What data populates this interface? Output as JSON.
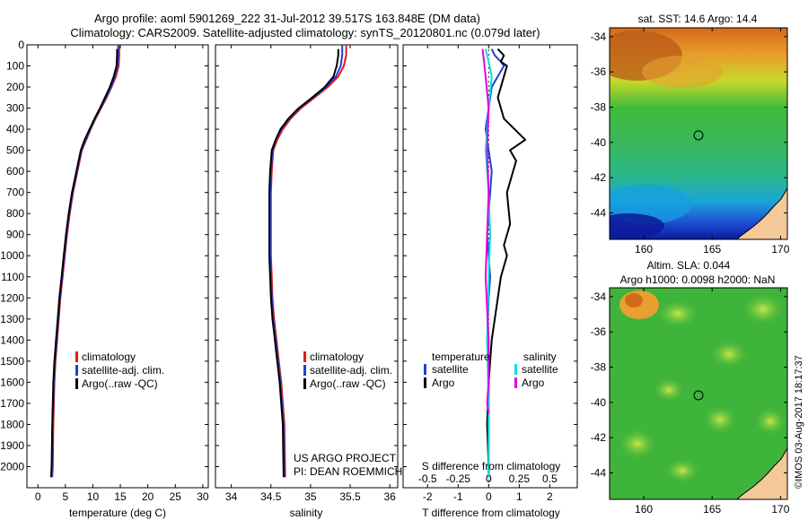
{
  "header": {
    "line1": "Argo profile: aoml 5901269_222 31-Jul-2012 39.517S 163.848E (DM data)",
    "line2": "Climatology: CARS2009. Satellite-adjusted climatology: synTS_20120801.nc (0.079d later)"
  },
  "colors": {
    "climatology": "#e41a1c",
    "satellite": "#1f3fd6",
    "argo": "#000000",
    "sal_satellite": "#00e0e0",
    "sal_argo": "#e000e0",
    "land": "#f5c89a"
  },
  "project": {
    "line1": "US ARGO PROJECT",
    "line2": "PI: DEAN ROEMMICH"
  },
  "credit": "©IMOS 03-Aug-2017 18:17:37",
  "chart_data": [
    {
      "id": "temperature",
      "type": "line",
      "xlabel": "temperature (deg C)",
      "ylabel": "",
      "xlim": [
        -2,
        31
      ],
      "ylim": [
        2100,
        0
      ],
      "xticks": [
        0,
        5,
        10,
        15,
        20,
        25,
        30
      ],
      "yticks": [
        0,
        100,
        200,
        300,
        400,
        500,
        600,
        700,
        800,
        900,
        1000,
        1100,
        1200,
        1300,
        1400,
        1500,
        1600,
        1700,
        1800,
        1900,
        2000
      ],
      "legend": [
        "climatology",
        "satellite-adj. clim.",
        "Argo(..raw -QC)"
      ],
      "series": [
        {
          "name": "climatology",
          "color": "#e41a1c",
          "x": [
            14.8,
            14.8,
            14.7,
            14.2,
            13.4,
            12.5,
            11.5,
            10.5,
            9.6,
            8.8,
            8.0,
            7.2,
            6.4,
            5.8,
            5.3,
            4.9,
            4.5,
            4.1,
            3.8,
            3.5,
            3.2,
            3.0,
            2.8,
            2.7,
            2.6
          ],
          "y": [
            0,
            50,
            100,
            150,
            200,
            250,
            300,
            350,
            400,
            450,
            500,
            600,
            700,
            800,
            900,
            1000,
            1100,
            1200,
            1300,
            1400,
            1500,
            1600,
            1800,
            2000,
            2050
          ]
        },
        {
          "name": "satellite-adj. clim.",
          "color": "#1f3fd6",
          "x": [
            14.6,
            14.6,
            14.5,
            14.0,
            13.3,
            12.4,
            11.4,
            10.4,
            9.5,
            8.7,
            7.9,
            7.1,
            6.3,
            5.7,
            5.2,
            4.8,
            4.4,
            4.0,
            3.7,
            3.4,
            3.1,
            2.9,
            2.7,
            2.6,
            2.5
          ],
          "y": [
            0,
            50,
            100,
            150,
            200,
            250,
            300,
            350,
            400,
            450,
            500,
            600,
            700,
            800,
            900,
            1000,
            1100,
            1200,
            1300,
            1400,
            1500,
            1600,
            1800,
            2000,
            2050
          ]
        },
        {
          "name": "Argo(..raw -QC)",
          "color": "#000000",
          "x": [
            14.4,
            14.4,
            14.3,
            13.8,
            13.1,
            12.2,
            11.3,
            10.3,
            9.4,
            8.5,
            7.8,
            7.0,
            6.2,
            5.6,
            5.1,
            4.7,
            4.3,
            3.9,
            3.6,
            3.3,
            3.0,
            2.8,
            2.6,
            2.5,
            2.4
          ],
          "y": [
            20,
            50,
            100,
            150,
            200,
            250,
            300,
            350,
            400,
            450,
            500,
            600,
            700,
            800,
            900,
            1000,
            1100,
            1200,
            1300,
            1400,
            1500,
            1600,
            1800,
            2000,
            2050
          ]
        }
      ]
    },
    {
      "id": "salinity",
      "type": "line",
      "xlabel": "salinity",
      "ylabel": "",
      "xlim": [
        33.8,
        36.1
      ],
      "ylim": [
        2100,
        0
      ],
      "xticks": [
        34,
        34.5,
        35,
        35.5,
        36
      ],
      "xticklabels": [
        "34",
        "34.5",
        "35",
        "35.5",
        "36"
      ],
      "legend": [
        "climatology",
        "satellite-adj. clim.",
        "Argo(..raw -QC)"
      ],
      "series": [
        {
          "name": "climatology",
          "color": "#e41a1c",
          "x": [
            35.45,
            35.45,
            35.42,
            35.35,
            35.22,
            35.05,
            34.88,
            34.75,
            34.65,
            34.58,
            34.53,
            34.51,
            34.5,
            34.5,
            34.5,
            34.5,
            34.51,
            34.52,
            34.54,
            34.57,
            34.6,
            34.63,
            34.67,
            34.68
          ],
          "y": [
            0,
            50,
            100,
            150,
            200,
            250,
            300,
            350,
            400,
            450,
            500,
            600,
            700,
            800,
            900,
            1000,
            1100,
            1200,
            1300,
            1400,
            1500,
            1600,
            1800,
            2050
          ]
        },
        {
          "name": "satellite-adj. clim.",
          "color": "#1f3fd6",
          "x": [
            35.4,
            35.4,
            35.38,
            35.32,
            35.2,
            35.03,
            34.86,
            34.73,
            34.63,
            34.56,
            34.52,
            34.5,
            34.49,
            34.49,
            34.49,
            34.49,
            34.5,
            34.51,
            34.53,
            34.56,
            34.59,
            34.62,
            34.66,
            34.67
          ],
          "y": [
            0,
            50,
            100,
            150,
            200,
            250,
            300,
            350,
            400,
            450,
            500,
            600,
            700,
            800,
            900,
            1000,
            1100,
            1200,
            1300,
            1400,
            1500,
            1600,
            1800,
            2050
          ]
        },
        {
          "name": "Argo(..raw -QC)",
          "color": "#000000",
          "x": [
            35.35,
            35.35,
            35.33,
            35.29,
            35.18,
            35.02,
            34.85,
            34.72,
            34.62,
            34.56,
            34.51,
            34.49,
            34.48,
            34.48,
            34.48,
            34.48,
            34.49,
            34.5,
            34.52,
            34.55,
            34.58,
            34.61,
            34.65,
            34.66
          ],
          "y": [
            20,
            50,
            100,
            150,
            200,
            250,
            300,
            350,
            400,
            450,
            500,
            600,
            700,
            800,
            900,
            1000,
            1100,
            1200,
            1300,
            1400,
            1500,
            1600,
            1800,
            2050
          ]
        }
      ]
    },
    {
      "id": "difference",
      "type": "line",
      "xlabel": "T difference from climatology",
      "xlabel_top": "S difference from climatology",
      "xlim": [
        -2.8,
        2.9
      ],
      "ylim": [
        2100,
        0
      ],
      "xticks": [
        -2,
        -1,
        0,
        1,
        2
      ],
      "top_ticks": [
        "-0.5",
        "-0.25",
        "0",
        "0.25",
        "0.5"
      ],
      "top_tick_positions": [
        -2,
        -1,
        0,
        1,
        2
      ],
      "legend": {
        "temperature": [
          "satellite",
          "Argo"
        ],
        "salinity": [
          "satellite",
          "Argo"
        ],
        "headers": [
          "temperature",
          "salinity"
        ]
      },
      "series": [
        {
          "name": "T satellite",
          "color": "#1f3fd6",
          "x": [
            0.1,
            0.2,
            0.4,
            0.5,
            0.3,
            0.1,
            0.0,
            -0.1,
            0.0,
            0.1,
            0.05,
            0.0,
            -0.05,
            0.0,
            0.05,
            0.0,
            -0.05,
            0.0,
            0.0,
            0.0,
            0.0
          ],
          "y": [
            20,
            50,
            80,
            100,
            150,
            200,
            300,
            400,
            500,
            600,
            700,
            800,
            900,
            1000,
            1100,
            1200,
            1400,
            1600,
            1800,
            2000,
            2050
          ]
        },
        {
          "name": "T Argo",
          "color": "#000000",
          "x": [
            0.3,
            0.5,
            0.4,
            0.6,
            0.5,
            0.3,
            0.5,
            1.2,
            0.7,
            0.9,
            0.6,
            0.7,
            0.5,
            0.6,
            0.4,
            0.3,
            0.1,
            0.0,
            -0.05,
            0.0,
            0.0
          ],
          "y": [
            20,
            50,
            80,
            100,
            150,
            250,
            350,
            450,
            500,
            550,
            700,
            850,
            950,
            1000,
            1100,
            1200,
            1400,
            1600,
            1800,
            2000,
            2050
          ]
        },
        {
          "name": "S satellite",
          "color": "#00e0e0",
          "x": [
            -0.1,
            0.0,
            0.1,
            0.0,
            -0.1,
            0.0,
            0.05,
            0.0,
            -0.05,
            0.0,
            0.0,
            0.0
          ],
          "y": [
            20,
            80,
            150,
            300,
            500,
            700,
            900,
            1100,
            1400,
            1700,
            2000,
            2050
          ]
        },
        {
          "name": "S Argo",
          "color": "#e000e0",
          "x": [
            -0.2,
            -0.15,
            -0.1,
            0.0,
            -0.05,
            0.0,
            -0.05,
            -0.1,
            0.0,
            0.0,
            -0.05,
            0.0
          ],
          "y": [
            20,
            80,
            150,
            300,
            500,
            700,
            900,
            1100,
            1400,
            1600,
            1700,
            1750
          ]
        }
      ]
    },
    {
      "id": "sst_map",
      "type": "heatmap",
      "title": "sat. SST: 14.6 Argo: 14.4",
      "xlim": [
        157.5,
        170.5
      ],
      "ylim": [
        -45.5,
        -33.5
      ],
      "xticks": [
        160,
        165,
        170
      ],
      "yticks": [
        -34,
        -36,
        -38,
        -40,
        -42,
        -44
      ],
      "marker": {
        "lon": 163.848,
        "lat": -39.517
      }
    },
    {
      "id": "sla_map",
      "type": "heatmap",
      "title": "Altim. SLA: 0.044",
      "subtitle": "Argo h1000: 0.0098 h2000: NaN",
      "xlim": [
        157.5,
        170.5
      ],
      "ylim": [
        -45.5,
        -33.5
      ],
      "xticks": [
        160,
        165,
        170
      ],
      "yticks": [
        -34,
        -36,
        -38,
        -40,
        -42,
        -44
      ],
      "marker": {
        "lon": 163.848,
        "lat": -39.517
      }
    }
  ]
}
